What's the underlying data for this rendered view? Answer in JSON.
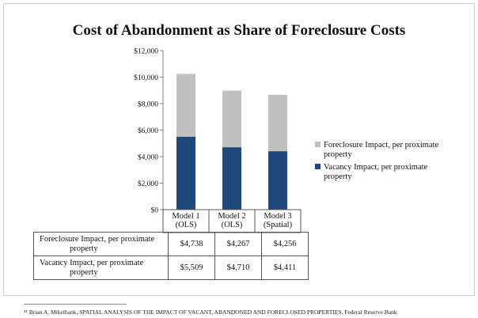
{
  "chart_data": {
    "type": "bar",
    "stacked": true,
    "title": "Cost of Abandonment as Share of Foreclosure Costs",
    "xlabel": "",
    "ylabel": "",
    "ylim": [
      0,
      12000
    ],
    "yticks": [
      "$0",
      "$2,000",
      "$4,000",
      "$6,000",
      "$8,000",
      "$10,000",
      "$12,000"
    ],
    "ytick_values": [
      0,
      2000,
      4000,
      6000,
      8000,
      10000,
      12000
    ],
    "categories": [
      [
        "Model 1",
        "(OLS)"
      ],
      [
        "Model 2",
        "(OLS)"
      ],
      [
        "Model 3",
        "(Spatial)"
      ]
    ],
    "series": [
      {
        "name": "Vacancy Impact, per proximate property",
        "legend_lines": [
          "Vacancy Impact, per proximate",
          "property"
        ],
        "table_lines": [
          "Vacancy Impact, per proximate",
          "property"
        ],
        "values": [
          5509,
          4710,
          4411
        ],
        "labels": [
          "$5,509",
          "$4,710",
          "$4,411"
        ],
        "color": "#1f497d"
      },
      {
        "name": "Foreclosure Impact, per proximate property",
        "legend_lines": [
          "Foreclosure Impact, per proximate",
          "property"
        ],
        "table_lines": [
          "Foreclosure Impact, per proximate",
          "property"
        ],
        "values": [
          4738,
          4267,
          4256
        ],
        "labels": [
          "$4,738",
          "$4,267",
          "$4,256"
        ],
        "color": "#c0c0c0"
      }
    ],
    "legend_position": "right",
    "grid": false
  },
  "footnote": "⁴¹ Brian A. Mikelbank, SPATIAL ANALYSIS OF THE IMPACT OF VACANT, ABANDONED AND FORECLOSED PROPERTIES, Federal Reserve Bank"
}
